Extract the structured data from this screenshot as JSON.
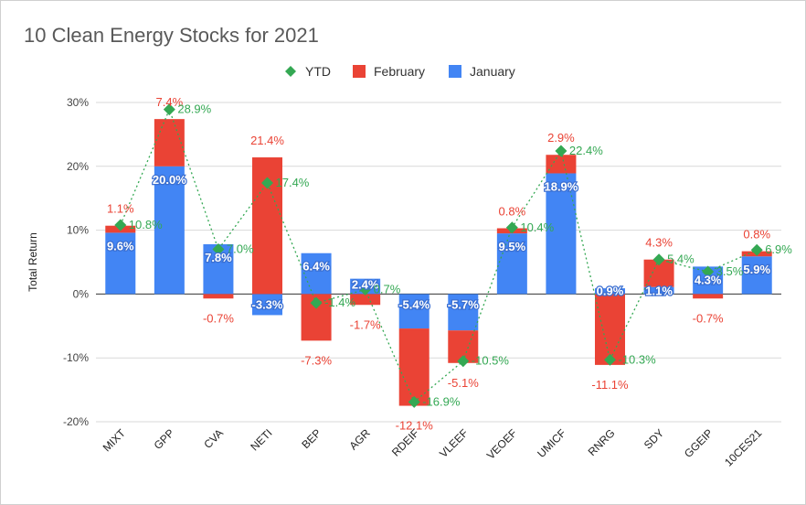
{
  "chart_data": {
    "type": "bar",
    "title": "10 Clean Energy Stocks for 2021",
    "xlabel": "",
    "ylabel": "Total Return",
    "ylim": [
      -20,
      30
    ],
    "yticks": [
      "-20%",
      "-10%",
      "0%",
      "10%",
      "20%",
      "30%"
    ],
    "grid": true,
    "legend_position": "top",
    "categories": [
      "MIXT",
      "GPP",
      "CVA",
      "NETI",
      "BEP",
      "AGR",
      "RDEIF",
      "VLEEF",
      "VEOEF",
      "UMICF",
      "RNRG",
      "SDY",
      "GGEIP",
      "10CES21"
    ],
    "series": [
      {
        "name": "January",
        "type": "bar",
        "color": "#4285f4",
        "values": [
          9.6,
          20.0,
          7.8,
          -3.3,
          6.4,
          2.4,
          -5.4,
          -5.7,
          9.5,
          18.9,
          0.9,
          1.1,
          4.3,
          5.9
        ],
        "labels": [
          "9.6%",
          "20.0%",
          "7.8%",
          "-3.3%",
          "6.4%",
          "2.4%",
          "-5.4%",
          "-5.7%",
          "9.5%",
          "18.9%",
          "0.9%",
          "1.1%",
          "4.3%",
          "5.9%"
        ]
      },
      {
        "name": "February",
        "type": "bar",
        "color": "#ea4335",
        "values": [
          1.1,
          7.4,
          -0.7,
          21.4,
          -7.3,
          -1.7,
          -12.1,
          -5.1,
          0.8,
          2.9,
          -11.1,
          4.3,
          -0.7,
          0.8
        ],
        "labels": [
          "1.1%",
          "7.4%",
          "-0.7%",
          "21.4%",
          "-7.3%",
          "-1.7%",
          "-12.1%",
          "-5.1%",
          "0.8%",
          "2.9%",
          "-11.1%",
          "4.3%",
          "-0.7%",
          "0.8%"
        ]
      },
      {
        "name": "YTD",
        "type": "line",
        "color": "#34a853",
        "values": [
          10.8,
          28.9,
          7.0,
          17.4,
          -1.4,
          0.7,
          -16.9,
          -10.5,
          10.4,
          22.4,
          -10.3,
          5.4,
          3.5,
          6.9
        ],
        "labels": [
          "10.8%",
          "28.9%",
          "7.0%",
          "17.4%",
          "-1.4%",
          "0.7%",
          "-16.9%",
          "-10.5%",
          "10.4%",
          "22.4%",
          "-10.3%",
          "5.4%",
          "3.5%",
          "6.9%"
        ]
      }
    ],
    "legend": [
      "YTD",
      "February",
      "January"
    ]
  }
}
